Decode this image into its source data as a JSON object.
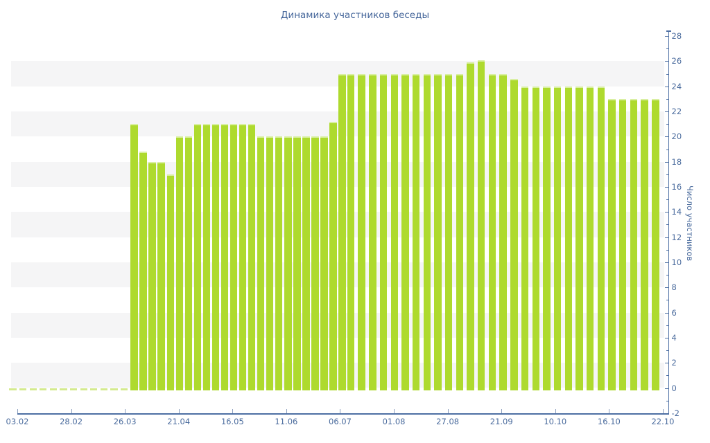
{
  "title": "Динамика участников беседы",
  "chart_data": {
    "type": "bar",
    "title": "Динамика участников беседы",
    "xlabel": "",
    "ylabel": "Число участников",
    "ylim": [
      -2,
      28
    ],
    "y_tick_step": 2,
    "y_tick_labels": [
      "-2",
      "0",
      "2",
      "4",
      "6",
      "8",
      "10",
      "12",
      "14",
      "16",
      "18",
      "20",
      "22",
      "24",
      "26",
      "28"
    ],
    "x_tick_labels": [
      "03.02",
      "28.02",
      "26.03",
      "21.04",
      "16.05",
      "11.06",
      "06.07",
      "01.08",
      "27.08",
      "21.09",
      "10.10",
      "16.10",
      "22.10"
    ],
    "grid": "alternating horizontal bands of 2 units",
    "legend": "none",
    "values": [
      0,
      0,
      0,
      0,
      0,
      0,
      0,
      0,
      0,
      0,
      0,
      0,
      21,
      18.8,
      18,
      18,
      17,
      20,
      20,
      21,
      21,
      21,
      21,
      21,
      21,
      21,
      20,
      20,
      20,
      20,
      20,
      20,
      20,
      20,
      21.2,
      25,
      25,
      25,
      25,
      25,
      25,
      25,
      25,
      25,
      25,
      25,
      25,
      25.9,
      26.1,
      25,
      25,
      24.6,
      24,
      24,
      24,
      24,
      24,
      24,
      24,
      24,
      23,
      23,
      23,
      23,
      23
    ],
    "colors": {
      "bar": "#aeda2e",
      "bar_highlight": "#d9efa2",
      "zero_dash": "#d4ea8e",
      "band": "#f5f5f6",
      "axis_text": "#4a6b9d",
      "axis_line": "#4d6fa3",
      "background": "#ffffff"
    }
  }
}
